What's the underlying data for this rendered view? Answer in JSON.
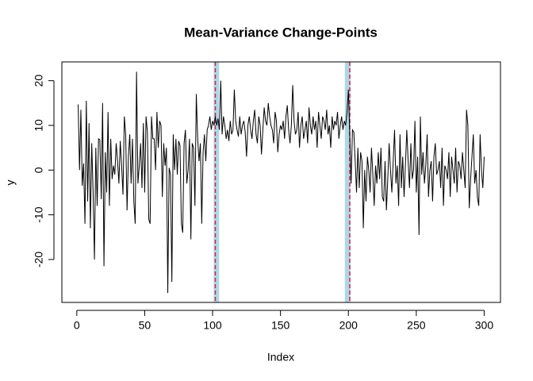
{
  "chart_data": {
    "type": "line",
    "title": "Mean-Variance Change-Points",
    "x_label": "Index",
    "y_label": "y",
    "color": "#000000",
    "band_color": "#add8e6",
    "changepoint_color": "#e0184a",
    "bands": [
      [
        100.8,
        104.8
      ],
      [
        197.4,
        201.5
      ]
    ],
    "changepoints": [
      102,
      201
    ],
    "xlim": [
      -11,
      312
    ],
    "ylim": [
      -29.6,
      24.2
    ],
    "xticks": [
      0,
      50,
      100,
      150,
      200,
      250,
      300
    ],
    "yticks": [
      -20,
      -10,
      0,
      10,
      20
    ],
    "values": [
      14.7,
      0,
      13.5,
      -3.5,
      1.5,
      -12,
      15.5,
      -7,
      10.5,
      -13,
      6,
      -5,
      -20,
      5,
      -8,
      7,
      6.8,
      -6.5,
      15,
      -21.5,
      4,
      -5,
      13,
      -8,
      7,
      -2,
      1,
      -1,
      6,
      2,
      -3,
      6.5,
      1,
      -5.5,
      12,
      8,
      -9,
      3,
      8,
      -3,
      7,
      -7,
      -12,
      22,
      -3,
      1,
      6,
      -4,
      10.5,
      -5,
      12,
      8.5,
      -11,
      -12,
      12,
      7,
      7,
      0,
      13,
      5,
      11,
      10,
      -6,
      6,
      1,
      5,
      -27.5,
      0.5,
      -1,
      -25,
      8,
      0,
      7,
      -1,
      6.5,
      5.5,
      -12,
      -14,
      6,
      9,
      -3,
      0,
      7,
      -15.5,
      6,
      5,
      -8,
      17,
      7,
      2,
      6,
      -12,
      4,
      8,
      2,
      9,
      10,
      12,
      9,
      11,
      10,
      12,
      10,
      11.5,
      9,
      20,
      8,
      12,
      10,
      7,
      9,
      6.5,
      11,
      8,
      9,
      18,
      11,
      9,
      7.5,
      12,
      8,
      10,
      11,
      8.5,
      3,
      10,
      12,
      9,
      7,
      11,
      13.5,
      8,
      6,
      12,
      10,
      3.5,
      9,
      14,
      11,
      10,
      15,
      12,
      10,
      9,
      6,
      13,
      11,
      4,
      8,
      10,
      9,
      11,
      7,
      12,
      14.5,
      9,
      6,
      10,
      19,
      11,
      8,
      9,
      13,
      5,
      10,
      12,
      7,
      9,
      11,
      6,
      14,
      10,
      8,
      12,
      9,
      11,
      5,
      13,
      10,
      7,
      12,
      11,
      9,
      13.5,
      8,
      10,
      5,
      12,
      9,
      11,
      10,
      13,
      7,
      10,
      12,
      9,
      11,
      10,
      13,
      18,
      8,
      -3,
      9,
      8.5,
      2,
      -5,
      5,
      -4,
      4,
      2,
      -13,
      0,
      -7,
      3,
      0,
      -5,
      5,
      -1,
      -8,
      1,
      -3,
      4,
      -2,
      5,
      -6,
      -7,
      2,
      -9,
      -2,
      6,
      0,
      -5,
      2,
      9,
      -3,
      1,
      -8,
      8,
      -4,
      3,
      -6,
      1,
      9,
      2,
      -4,
      6,
      -2,
      0,
      11,
      -5,
      3,
      -14.5,
      12,
      -1,
      4,
      -3,
      1,
      8,
      -6,
      0,
      2,
      -7,
      3,
      6,
      -1,
      0,
      2,
      -4,
      5,
      -8,
      1,
      0,
      -2,
      4,
      -6,
      3,
      0,
      -3,
      5,
      -5,
      2,
      1,
      -2,
      4,
      0,
      -4,
      13.5,
      10,
      -8.5,
      -2,
      3,
      8,
      -3,
      0,
      -6,
      -8,
      8,
      0,
      -4,
      3
    ]
  }
}
